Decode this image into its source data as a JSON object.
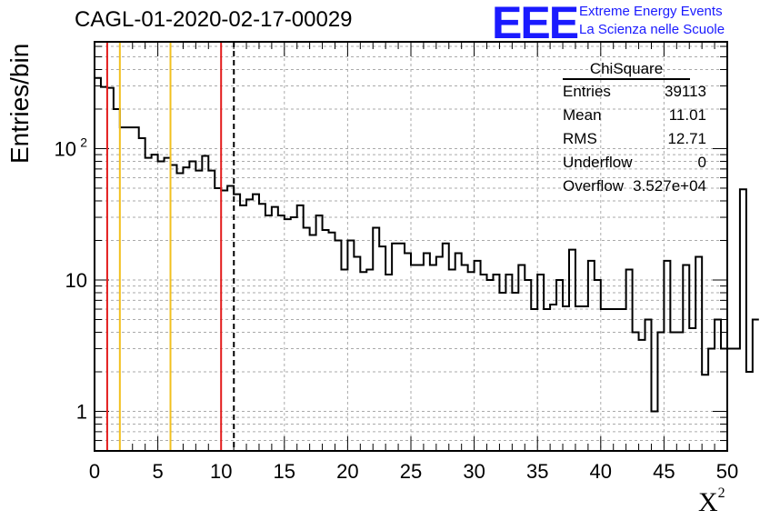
{
  "title": "CAGL-01-2020-02-17-00029",
  "logo": {
    "text": "EEE",
    "line1": "Extreme Energy Events",
    "line2": "La Scienza nelle Scuole"
  },
  "chart_data": {
    "type": "histogram",
    "title": "CAGL-01-2020-02-17-00029",
    "xlabel": "X",
    "xlabel_sup": "2",
    "ylabel": "Entries/bin",
    "xlim": [
      0,
      50
    ],
    "ylim": [
      0.5,
      650
    ],
    "yscale": "log",
    "grid": true,
    "bin_width": 0.5,
    "xticks": [
      0,
      5,
      10,
      15,
      20,
      25,
      30,
      35,
      40,
      45,
      50
    ],
    "yticks": [
      {
        "value": 1,
        "label": "1"
      },
      {
        "value": 10,
        "label": "10"
      },
      {
        "value": 100,
        "label": "10",
        "sup": "2"
      }
    ],
    "values": [
      345,
      295,
      290,
      200,
      145,
      145,
      145,
      120,
      85,
      90,
      80,
      85,
      75,
      65,
      72,
      80,
      68,
      88,
      68,
      50,
      48,
      52,
      45,
      37,
      41,
      45,
      38,
      31,
      36,
      31,
      29,
      30,
      37,
      25,
      22,
      31,
      24,
      23,
      20,
      12,
      20,
      15,
      11.5,
      12,
      25,
      18,
      11,
      19,
      19,
      16,
      13,
      13,
      16,
      13,
      15,
      19,
      12,
      16,
      13,
      11.5,
      14,
      11,
      10,
      11,
      8,
      11,
      8,
      13,
      10,
      6,
      11,
      6,
      6.5,
      10,
      6.3,
      17,
      6.3,
      6.3,
      14,
      10,
      6,
      6,
      6,
      6,
      12,
      4,
      3.5,
      5,
      1,
      4,
      14,
      4,
      4,
      13,
      4.3,
      15,
      1.9,
      3,
      5,
      3,
      3,
      3,
      49,
      2,
      5
    ],
    "vlines": [
      {
        "x": 1,
        "color": "#e31c1c",
        "style": "solid"
      },
      {
        "x": 2,
        "color": "#f2c01e",
        "style": "solid"
      },
      {
        "x": 6,
        "color": "#f2c01e",
        "style": "solid"
      },
      {
        "x": 10,
        "color": "#e31c1c",
        "style": "solid"
      },
      {
        "x": 11.01,
        "color": "#000000",
        "style": "dashed"
      }
    ],
    "stats": {
      "name": "ChiSquare",
      "rows": [
        {
          "label": "Entries",
          "value": "39113"
        },
        {
          "label": "Mean",
          "value": "11.01"
        },
        {
          "label": "RMS",
          "value": "12.71"
        },
        {
          "label": "Underflow",
          "value": "0"
        },
        {
          "label": "Overflow",
          "value": "3.527e+04"
        }
      ]
    }
  }
}
